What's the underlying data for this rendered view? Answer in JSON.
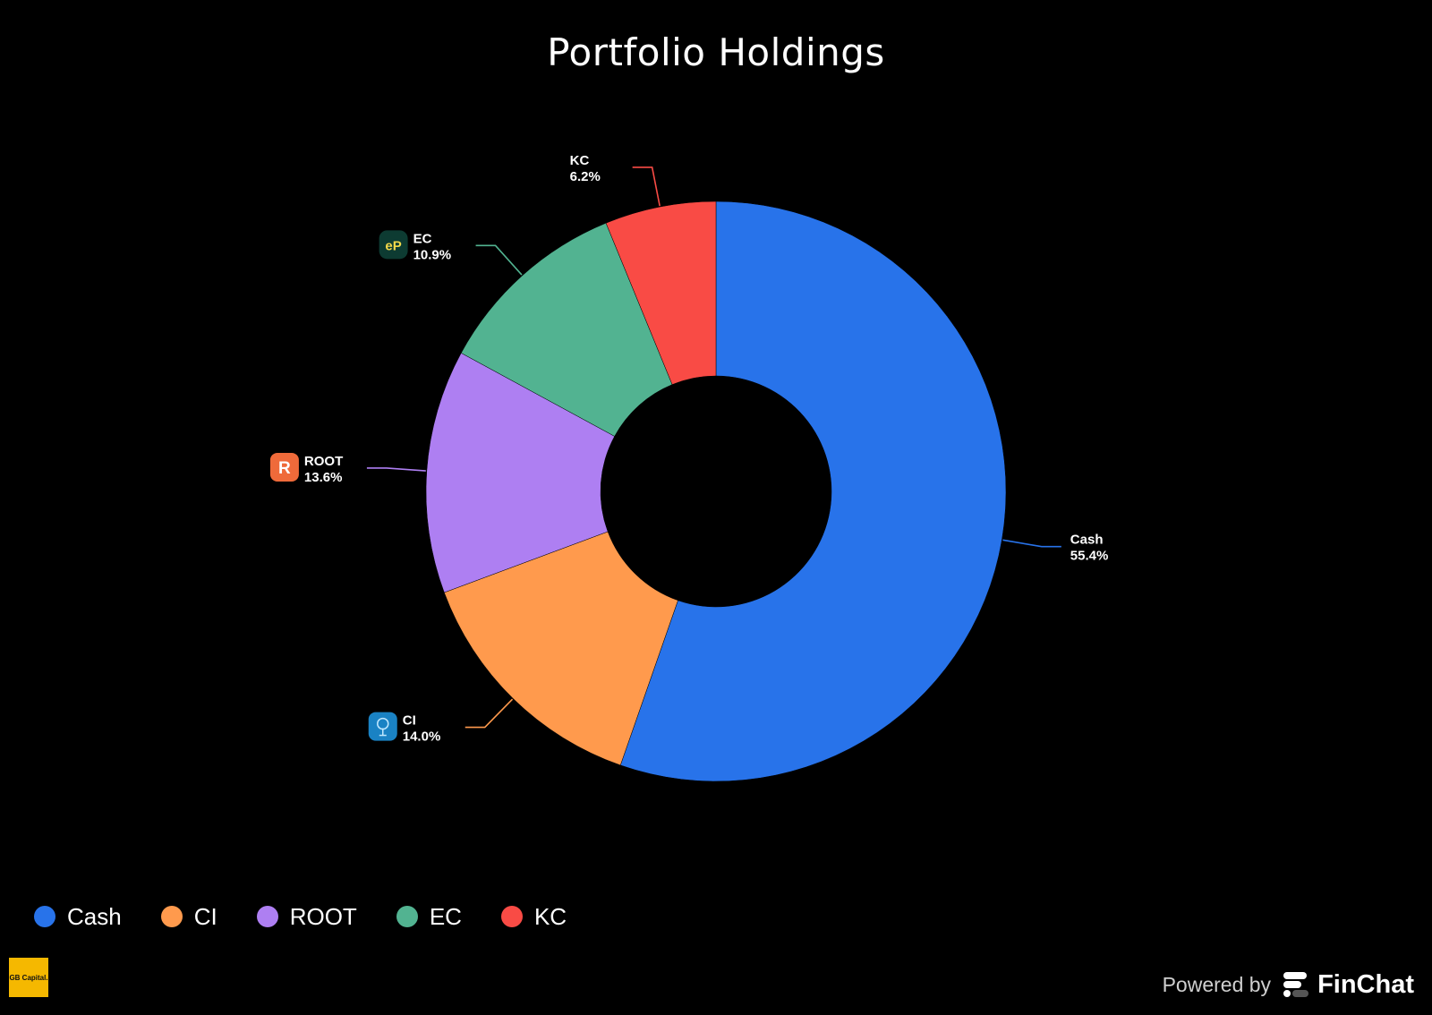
{
  "title": "Portfolio Holdings",
  "chart_data": {
    "type": "pie",
    "donut": true,
    "title": "Portfolio Holdings",
    "legend_position": "bottom-left",
    "series": [
      {
        "name": "Cash",
        "value": 55.4,
        "label": "55.4%",
        "color": "#2873ea",
        "icon": ""
      },
      {
        "name": "CI",
        "value": 14.0,
        "label": "14.0%",
        "color": "#ff9a4d",
        "icon": "ci-tree-icon"
      },
      {
        "name": "ROOT",
        "value": 13.6,
        "label": "13.6%",
        "color": "#ae7ff2",
        "icon": "root-r-icon"
      },
      {
        "name": "EC",
        "value": 10.9,
        "label": "10.9%",
        "color": "#52b391",
        "icon": "ep-icon"
      },
      {
        "name": "KC",
        "value": 6.2,
        "label": "6.2%",
        "color": "#f94b45",
        "icon": ""
      }
    ]
  },
  "footer": {
    "logo_text": "GB Capital.",
    "powered_by": "Powered by",
    "brand": "FinChat"
  }
}
